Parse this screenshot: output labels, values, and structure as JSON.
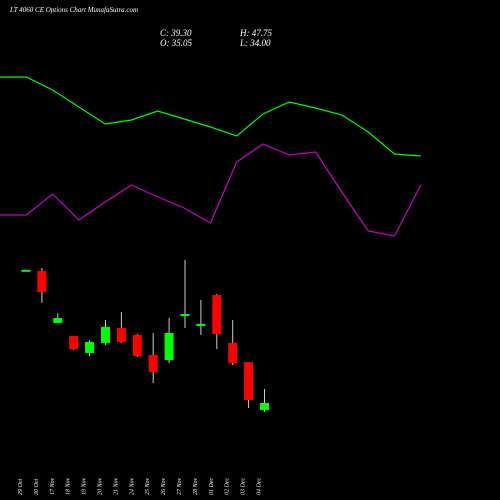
{
  "chart_data": [
    {
      "type": "candlestick",
      "title": "LT 4060 CE Options Chart MunafaSutra.com",
      "annotations": [
        "C: 39.30",
        "H: 47.75",
        "O: 35.05",
        "L: 34.00"
      ],
      "categories": [
        "29 Oct",
        "30 Oct",
        "17 Nov",
        "18 Nov",
        "19 Nov",
        "20 Nov",
        "21 Nov",
        "24 Nov",
        "25 Nov",
        "26 Nov",
        "27 Nov",
        "28 Nov",
        "01 Dec",
        "02 Dec",
        "03 Dec",
        "04 Dec"
      ],
      "open": [
        120,
        119.3,
        87.8,
        79.9,
        69.6,
        75.7,
        84.7,
        80.5,
        68.4,
        65.3,
        92.0,
        86.0,
        104.7,
        75.7,
        64.1,
        35.05
      ],
      "high": [
        120,
        121.1,
        93.8,
        79.9,
        77.5,
        89.6,
        94.4,
        81.1,
        81.7,
        90.8,
        126,
        101.7,
        105.3,
        89.6,
        64.1,
        47.75
      ],
      "low": [
        120,
        99.9,
        87.8,
        71.4,
        67.8,
        74.4,
        75.7,
        67.2,
        51.4,
        63.5,
        84.7,
        80.5,
        72.0,
        62.3,
        36.3,
        34.0
      ],
      "close": [
        120,
        106.6,
        90.8,
        72.0,
        76.3,
        85.4,
        76.3,
        67.8,
        58.1,
        81.7,
        93.2,
        87.2,
        81.1,
        63.5,
        41.1,
        39.3
      ],
      "up_color": "#00ff00",
      "down_color": "#ff0000",
      "ylim": [
        29,
        132
      ]
    },
    {
      "type": "line",
      "series": [
        {
          "color": "#00ff00",
          "values": [
            86.5,
            86.5,
            80,
            71.5,
            63,
            65,
            69.5,
            65.5,
            61.5,
            57,
            68,
            74,
            71,
            67.5,
            59,
            48,
            47
          ]
        },
        {
          "color": "#cc00cc",
          "values": [
            17.5,
            17.5,
            28,
            15,
            24,
            32.5,
            26.5,
            21,
            13.5,
            44,
            53,
            47.5,
            49,
            29,
            9.5,
            7,
            32.5
          ]
        }
      ],
      "ylim": [
        0,
        100
      ]
    }
  ]
}
